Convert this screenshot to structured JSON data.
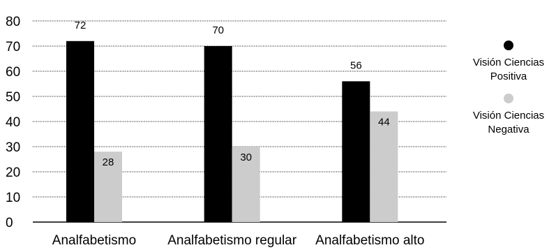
{
  "chart_data": {
    "type": "bar",
    "categories": [
      "Analfabetismo",
      "Analfabetismo regular",
      "Analfabetismo alto"
    ],
    "series": [
      {
        "name": "Visión Ciencias Positiva",
        "values": [
          72,
          70,
          56
        ],
        "color": "#000000"
      },
      {
        "name": "Visión Ciencias Negativa",
        "values": [
          28,
          30,
          44
        ],
        "color": "#cccccc"
      }
    ],
    "y_ticks": [
      0,
      10,
      20,
      30,
      40,
      50,
      60,
      70,
      80
    ],
    "ylim": [
      0,
      80
    ],
    "grid": true,
    "grid_style": "dotted",
    "legend_position": "right",
    "legend": [
      {
        "line1": "Visión Ciencias",
        "line2": "Positiva",
        "color": "#000000"
      },
      {
        "line1": "Visión Ciencias",
        "line2": "Negativa",
        "color": "#cccccc"
      }
    ]
  }
}
